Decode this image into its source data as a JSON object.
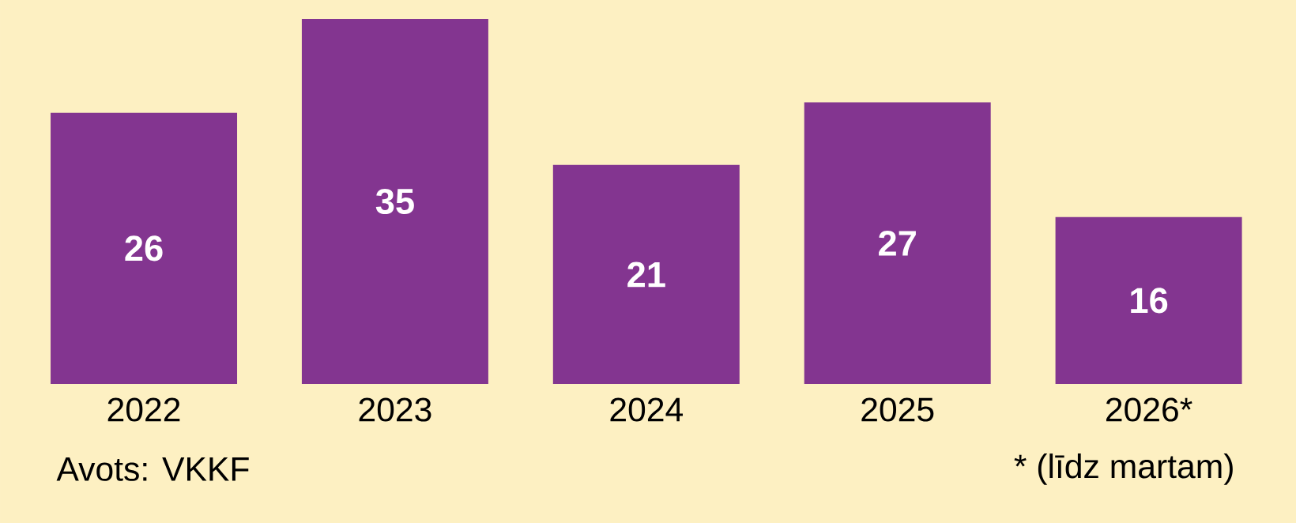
{
  "chart_data": {
    "type": "bar",
    "categories": [
      "2022",
      "2023",
      "2024",
      "2025",
      "2026*"
    ],
    "values": [
      26,
      35,
      21,
      27,
      16
    ],
    "color": "#833590",
    "data_labels": true,
    "annotations": [
      "Avots: VKKF",
      "* (līdz martam)"
    ]
  }
}
